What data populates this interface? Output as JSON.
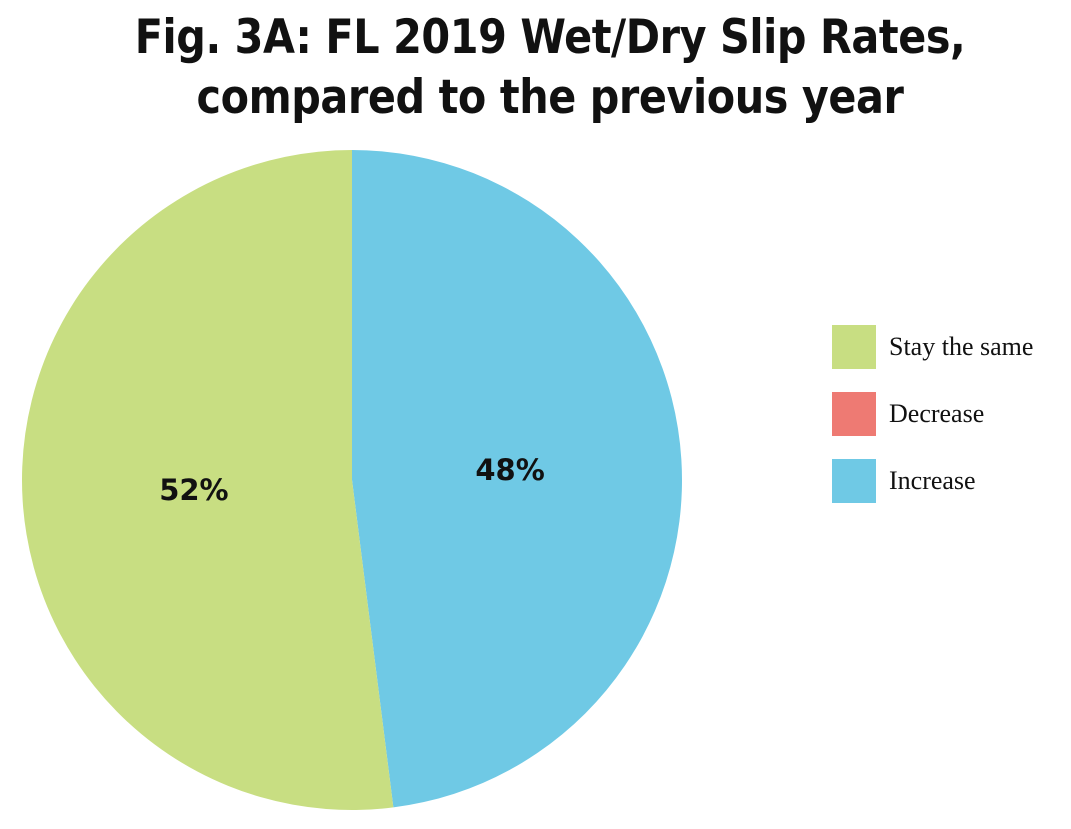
{
  "chart_data": {
    "type": "pie",
    "title_line1": "Fig. 3A: FL 2019 Wet/Dry Slip Rates,",
    "title_line2": "compared to the previous year",
    "slices": [
      {
        "label": "Increase",
        "value": 48,
        "data_label": "48%",
        "color": "#6FC9E5"
      },
      {
        "label": "Stay the same",
        "value": 52,
        "data_label": "52%",
        "color": "#C8DE82"
      },
      {
        "label": "Decrease",
        "value": 0,
        "data_label": "",
        "color": "#EE7A73"
      }
    ],
    "legend": [
      {
        "label": "Stay the same",
        "color": "#C8DE82"
      },
      {
        "label": "Decrease",
        "color": "#EE7A73"
      },
      {
        "label": "Increase",
        "color": "#6FC9E5"
      }
    ],
    "legend_position": "right"
  }
}
